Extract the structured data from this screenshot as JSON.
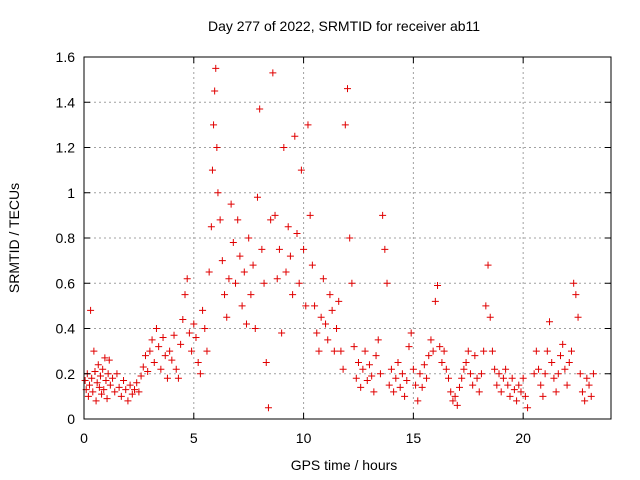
{
  "chart_data": {
    "type": "scatter",
    "title": "Day 277 of 2022, SRMTID for receiver ab11",
    "xlabel": "GPS time / hours",
    "ylabel": "SRMTID / TECUs",
    "xlim": [
      0,
      24
    ],
    "ylim": [
      0,
      1.6
    ],
    "xticks": [
      0,
      5,
      10,
      15,
      20
    ],
    "yticks": [
      0,
      0.2,
      0.4,
      0.6,
      0.8,
      1,
      1.2,
      1.4,
      1.6
    ],
    "xtick_labels": [
      "0",
      "5",
      "10",
      "15",
      "20"
    ],
    "ytick_labels": [
      "0",
      "0.2",
      "0.4",
      "0.6",
      "0.8",
      "1",
      "1.2",
      "1.4",
      "1.6"
    ],
    "grid": true,
    "marker": "+",
    "series_color": "#e00000",
    "series": [
      {
        "name": "SRMTID",
        "points": [
          [
            0.05,
            0.17
          ],
          [
            0.1,
            0.13
          ],
          [
            0.15,
            0.2
          ],
          [
            0.2,
            0.1
          ],
          [
            0.25,
            0.15
          ],
          [
            0.3,
            0.48
          ],
          [
            0.35,
            0.18
          ],
          [
            0.4,
            0.12
          ],
          [
            0.45,
            0.3
          ],
          [
            0.5,
            0.21
          ],
          [
            0.55,
            0.08
          ],
          [
            0.6,
            0.16
          ],
          [
            0.65,
            0.24
          ],
          [
            0.7,
            0.14
          ],
          [
            0.75,
            0.19
          ],
          [
            0.8,
            0.11
          ],
          [
            0.85,
            0.22
          ],
          [
            0.9,
            0.13
          ],
          [
            0.95,
            0.27
          ],
          [
            1.0,
            0.17
          ],
          [
            1.05,
            0.09
          ],
          [
            1.1,
            0.2
          ],
          [
            1.15,
            0.26
          ],
          [
            1.2,
            0.15
          ],
          [
            1.3,
            0.18
          ],
          [
            1.4,
            0.12
          ],
          [
            1.5,
            0.2
          ],
          [
            1.6,
            0.14
          ],
          [
            1.7,
            0.1
          ],
          [
            1.8,
            0.17
          ],
          [
            1.9,
            0.13
          ],
          [
            2.0,
            0.08
          ],
          [
            2.1,
            0.15
          ],
          [
            2.2,
            0.11
          ],
          [
            2.3,
            0.13
          ],
          [
            2.4,
            0.16
          ],
          [
            2.5,
            0.12
          ],
          [
            2.6,
            0.19
          ],
          [
            2.7,
            0.23
          ],
          [
            2.8,
            0.28
          ],
          [
            2.9,
            0.21
          ],
          [
            3.0,
            0.3
          ],
          [
            3.1,
            0.35
          ],
          [
            3.2,
            0.25
          ],
          [
            3.3,
            0.4
          ],
          [
            3.4,
            0.32
          ],
          [
            3.5,
            0.22
          ],
          [
            3.6,
            0.36
          ],
          [
            3.7,
            0.28
          ],
          [
            3.8,
            0.18
          ],
          [
            3.9,
            0.3
          ],
          [
            4.0,
            0.26
          ],
          [
            4.1,
            0.37
          ],
          [
            4.2,
            0.22
          ],
          [
            4.3,
            0.18
          ],
          [
            4.4,
            0.33
          ],
          [
            4.5,
            0.44
          ],
          [
            4.6,
            0.55
          ],
          [
            4.7,
            0.62
          ],
          [
            4.8,
            0.38
          ],
          [
            4.9,
            0.3
          ],
          [
            5.0,
            0.42
          ],
          [
            5.1,
            0.36
          ],
          [
            5.2,
            0.25
          ],
          [
            5.3,
            0.2
          ],
          [
            5.4,
            0.48
          ],
          [
            5.5,
            0.4
          ],
          [
            5.6,
            0.3
          ],
          [
            5.7,
            0.65
          ],
          [
            5.8,
            0.85
          ],
          [
            5.85,
            1.1
          ],
          [
            5.9,
            1.3
          ],
          [
            5.95,
            1.45
          ],
          [
            6.0,
            1.55
          ],
          [
            6.05,
            1.2
          ],
          [
            6.1,
            1.0
          ],
          [
            6.2,
            0.88
          ],
          [
            6.3,
            0.7
          ],
          [
            6.4,
            0.55
          ],
          [
            6.5,
            0.45
          ],
          [
            6.6,
            0.62
          ],
          [
            6.7,
            0.95
          ],
          [
            6.8,
            0.78
          ],
          [
            6.9,
            0.6
          ],
          [
            7.0,
            0.88
          ],
          [
            7.1,
            0.72
          ],
          [
            7.2,
            0.5
          ],
          [
            7.3,
            0.65
          ],
          [
            7.4,
            0.42
          ],
          [
            7.5,
            0.8
          ],
          [
            7.6,
            0.55
          ],
          [
            7.7,
            0.68
          ],
          [
            7.8,
            0.4
          ],
          [
            7.9,
            0.98
          ],
          [
            8.0,
            1.37
          ],
          [
            8.1,
            0.75
          ],
          [
            8.2,
            0.6
          ],
          [
            8.3,
            0.25
          ],
          [
            8.4,
            0.05
          ],
          [
            8.5,
            0.88
          ],
          [
            8.6,
            1.53
          ],
          [
            8.7,
            0.9
          ],
          [
            8.8,
            0.62
          ],
          [
            8.9,
            0.75
          ],
          [
            9.0,
            0.38
          ],
          [
            9.1,
            1.2
          ],
          [
            9.2,
            0.65
          ],
          [
            9.3,
            0.85
          ],
          [
            9.4,
            0.72
          ],
          [
            9.5,
            0.55
          ],
          [
            9.6,
            1.25
          ],
          [
            9.7,
            0.82
          ],
          [
            9.8,
            0.6
          ],
          [
            9.9,
            1.1
          ],
          [
            10.0,
            0.75
          ],
          [
            10.1,
            0.5
          ],
          [
            10.2,
            1.3
          ],
          [
            10.3,
            0.9
          ],
          [
            10.4,
            0.68
          ],
          [
            10.5,
            0.5
          ],
          [
            10.6,
            0.38
          ],
          [
            10.7,
            0.3
          ],
          [
            10.8,
            0.45
          ],
          [
            10.9,
            0.62
          ],
          [
            11.0,
            0.42
          ],
          [
            11.1,
            0.35
          ],
          [
            11.2,
            0.55
          ],
          [
            11.3,
            0.48
          ],
          [
            11.4,
            0.3
          ],
          [
            11.5,
            0.4
          ],
          [
            11.6,
            0.52
          ],
          [
            11.7,
            0.3
          ],
          [
            11.8,
            0.22
          ],
          [
            11.9,
            1.3
          ],
          [
            12.0,
            1.46
          ],
          [
            12.1,
            0.8
          ],
          [
            12.2,
            0.6
          ],
          [
            12.3,
            0.32
          ],
          [
            12.4,
            0.18
          ],
          [
            12.5,
            0.25
          ],
          [
            12.6,
            0.14
          ],
          [
            12.7,
            0.22
          ],
          [
            12.8,
            0.3
          ],
          [
            12.9,
            0.17
          ],
          [
            13.0,
            0.24
          ],
          [
            13.1,
            0.19
          ],
          [
            13.2,
            0.12
          ],
          [
            13.3,
            0.28
          ],
          [
            13.4,
            0.35
          ],
          [
            13.5,
            0.2
          ],
          [
            13.6,
            0.9
          ],
          [
            13.7,
            0.75
          ],
          [
            13.8,
            0.6
          ],
          [
            13.9,
            0.15
          ],
          [
            14.0,
            0.22
          ],
          [
            14.1,
            0.12
          ],
          [
            14.2,
            0.18
          ],
          [
            14.3,
            0.25
          ],
          [
            14.4,
            0.14
          ],
          [
            14.5,
            0.2
          ],
          [
            14.6,
            0.1
          ],
          [
            14.7,
            0.17
          ],
          [
            14.8,
            0.32
          ],
          [
            14.9,
            0.38
          ],
          [
            15.0,
            0.22
          ],
          [
            15.1,
            0.15
          ],
          [
            15.2,
            0.08
          ],
          [
            15.3,
            0.2
          ],
          [
            15.4,
            0.14
          ],
          [
            15.5,
            0.24
          ],
          [
            15.6,
            0.18
          ],
          [
            15.7,
            0.28
          ],
          [
            15.8,
            0.35
          ],
          [
            15.9,
            0.3
          ],
          [
            16.0,
            0.52
          ],
          [
            16.1,
            0.59
          ],
          [
            16.2,
            0.32
          ],
          [
            16.3,
            0.25
          ],
          [
            16.4,
            0.3
          ],
          [
            16.5,
            0.22
          ],
          [
            16.6,
            0.18
          ],
          [
            16.7,
            0.12
          ],
          [
            16.8,
            0.08
          ],
          [
            16.9,
            0.1
          ],
          [
            17.0,
            0.06
          ],
          [
            17.1,
            0.14
          ],
          [
            17.2,
            0.18
          ],
          [
            17.3,
            0.22
          ],
          [
            17.4,
            0.25
          ],
          [
            17.5,
            0.3
          ],
          [
            17.6,
            0.2
          ],
          [
            17.7,
            0.15
          ],
          [
            17.8,
            0.28
          ],
          [
            17.9,
            0.18
          ],
          [
            18.0,
            0.12
          ],
          [
            18.1,
            0.2
          ],
          [
            18.2,
            0.3
          ],
          [
            18.3,
            0.5
          ],
          [
            18.4,
            0.68
          ],
          [
            18.5,
            0.45
          ],
          [
            18.6,
            0.3
          ],
          [
            18.7,
            0.22
          ],
          [
            18.8,
            0.15
          ],
          [
            18.9,
            0.2
          ],
          [
            19.0,
            0.12
          ],
          [
            19.1,
            0.18
          ],
          [
            19.2,
            0.22
          ],
          [
            19.3,
            0.15
          ],
          [
            19.4,
            0.1
          ],
          [
            19.5,
            0.18
          ],
          [
            19.6,
            0.13
          ],
          [
            19.7,
            0.08
          ],
          [
            19.8,
            0.15
          ],
          [
            19.9,
            0.12
          ],
          [
            20.0,
            0.18
          ],
          [
            20.1,
            0.1
          ],
          [
            20.2,
            0.05
          ],
          [
            20.5,
            0.2
          ],
          [
            20.6,
            0.3
          ],
          [
            20.7,
            0.22
          ],
          [
            20.8,
            0.15
          ],
          [
            20.9,
            0.1
          ],
          [
            21.0,
            0.2
          ],
          [
            21.1,
            0.3
          ],
          [
            21.2,
            0.43
          ],
          [
            21.3,
            0.25
          ],
          [
            21.4,
            0.18
          ],
          [
            21.5,
            0.12
          ],
          [
            21.6,
            0.2
          ],
          [
            21.7,
            0.28
          ],
          [
            21.8,
            0.33
          ],
          [
            21.9,
            0.22
          ],
          [
            22.0,
            0.15
          ],
          [
            22.1,
            0.25
          ],
          [
            22.2,
            0.3
          ],
          [
            22.3,
            0.6
          ],
          [
            22.4,
            0.55
          ],
          [
            22.5,
            0.45
          ],
          [
            22.6,
            0.2
          ],
          [
            22.7,
            0.12
          ],
          [
            22.8,
            0.08
          ],
          [
            22.9,
            0.18
          ],
          [
            23.0,
            0.15
          ],
          [
            23.1,
            0.1
          ],
          [
            23.2,
            0.2
          ]
        ]
      }
    ]
  }
}
